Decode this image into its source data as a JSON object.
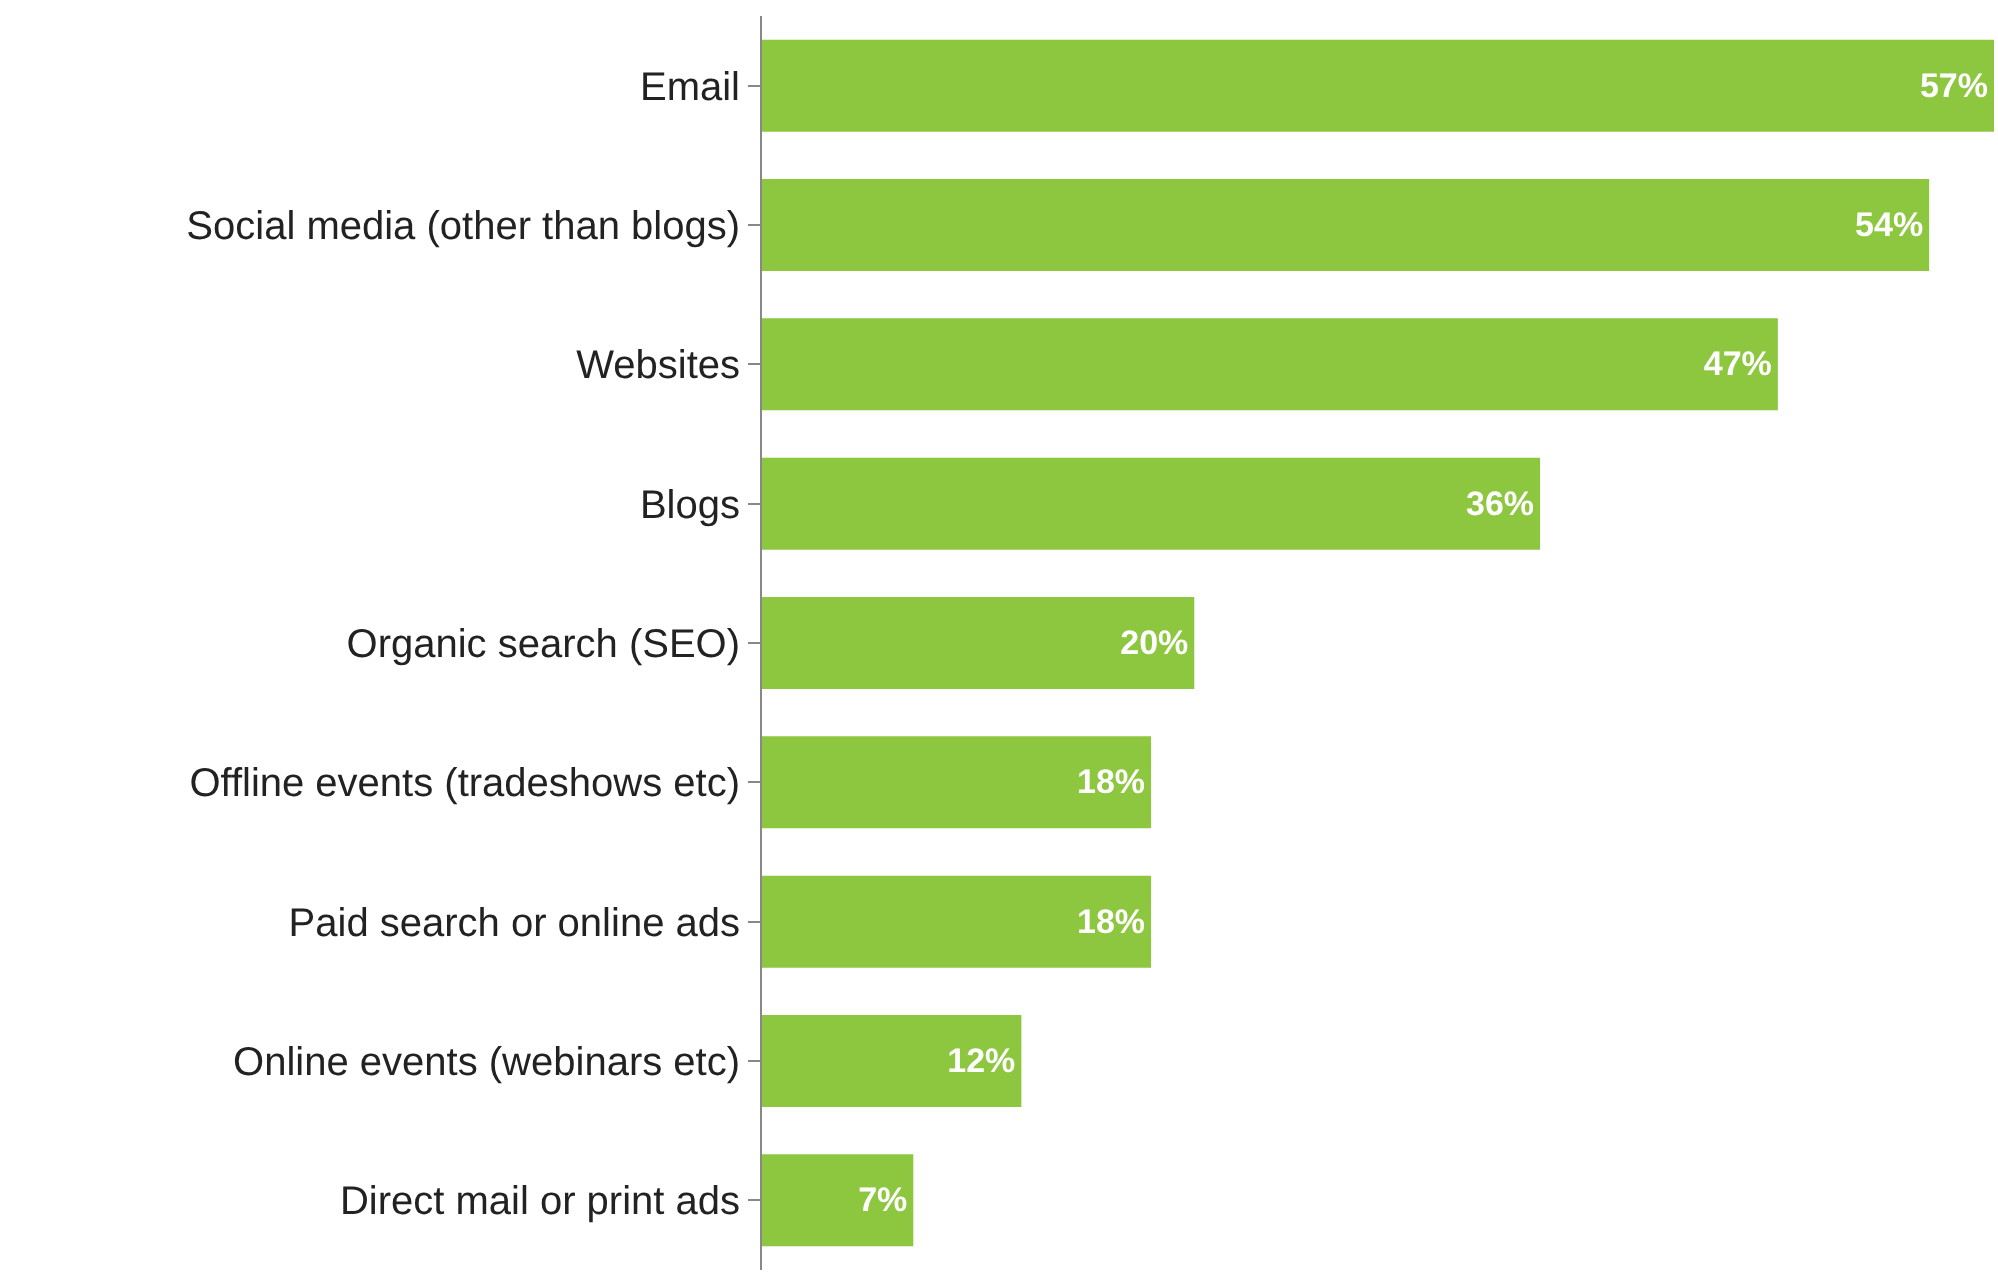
{
  "chart_data": {
    "type": "bar",
    "orientation": "horizontal",
    "categories": [
      "Email",
      "Social media (other than blogs)",
      "Websites",
      "Blogs",
      "Organic search (SEO)",
      "Offline events (tradeshows etc)",
      "Paid search or online ads",
      "Online events (webinars etc)",
      "Direct mail or print ads"
    ],
    "values": [
      57,
      54,
      47,
      36,
      20,
      18,
      18,
      12,
      7
    ],
    "value_labels": [
      "57%",
      "54%",
      "47%",
      "36%",
      "20%",
      "18%",
      "18%",
      "12%",
      "7%"
    ],
    "color": "#8dc63f"
  }
}
